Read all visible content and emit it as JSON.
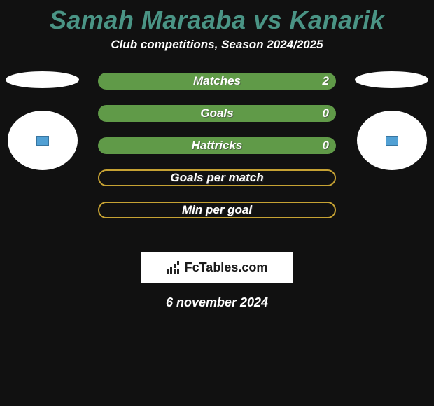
{
  "header": {
    "title": "Samah Maraaba vs Kanarik",
    "subtitle": "Club competitions, Season 2024/2025"
  },
  "bars": [
    {
      "label": "Matches",
      "value": "2",
      "style": "filled"
    },
    {
      "label": "Goals",
      "value": "0",
      "style": "filled"
    },
    {
      "label": "Hattricks",
      "value": "0",
      "style": "filled"
    },
    {
      "label": "Goals per match",
      "value": "",
      "style": "outline"
    },
    {
      "label": "Min per goal",
      "value": "",
      "style": "outline"
    }
  ],
  "brand": {
    "text": "FcTables.com"
  },
  "date": "6 november 2024",
  "colors": {
    "title": "#4a9485",
    "bar_filled": "#609a48",
    "bar_outline": "#c6a233",
    "background": "#111111"
  }
}
